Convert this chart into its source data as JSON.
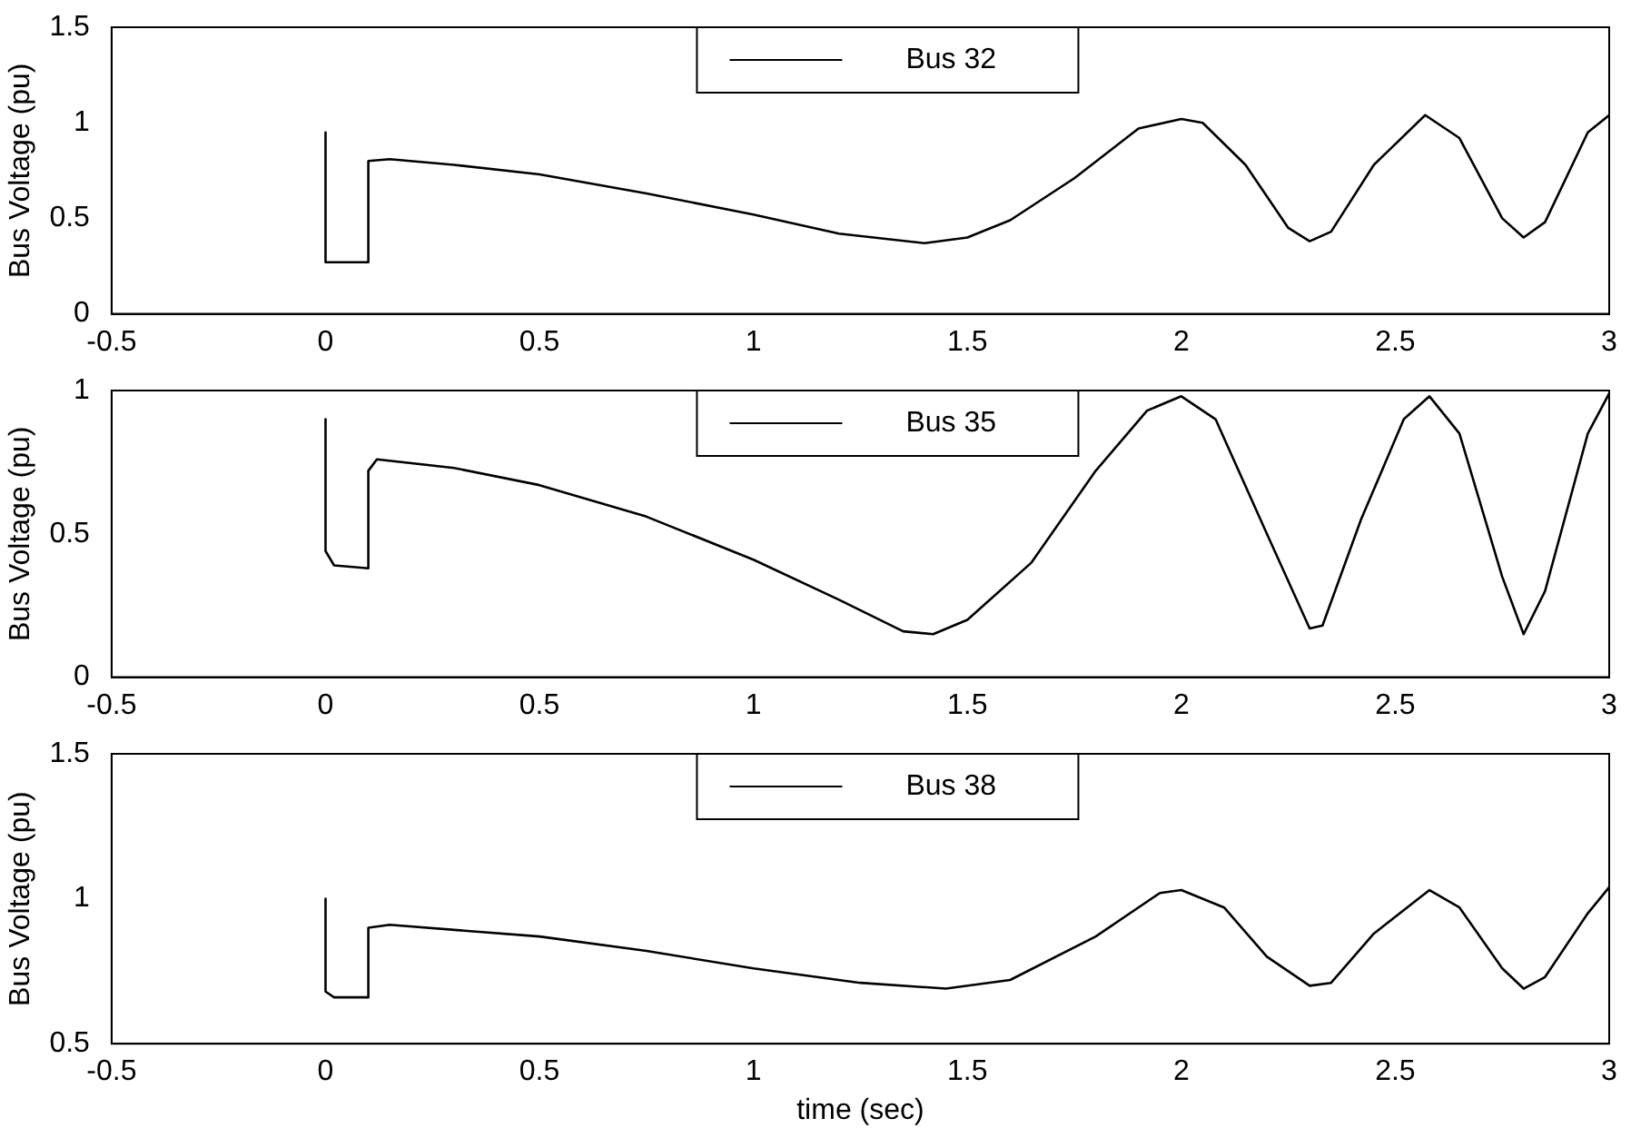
{
  "chart_data": [
    {
      "type": "line",
      "ylabel": "Bus Voltage (pu)",
      "xlim": [
        -0.5,
        3
      ],
      "xticks": [
        -0.5,
        0,
        0.5,
        1,
        1.5,
        2,
        2.5,
        3
      ],
      "ylim": [
        0,
        1.5
      ],
      "yticks": [
        0,
        0.5,
        1,
        1.5
      ],
      "grid": false,
      "legend": "top",
      "marker": "none",
      "series": [
        {
          "name": "Bus 32",
          "color": "#000000",
          "x": [
            0,
            0,
            0.1,
            0.1,
            0.15,
            0.3,
            0.5,
            0.75,
            1,
            1.2,
            1.4,
            1.5,
            1.6,
            1.75,
            1.9,
            2.0,
            2.05,
            2.15,
            2.25,
            2.3,
            2.35,
            2.45,
            2.57,
            2.65,
            2.75,
            2.8,
            2.85,
            2.95,
            3.0
          ],
          "values": [
            0.95,
            0.27,
            0.27,
            0.8,
            0.81,
            0.78,
            0.73,
            0.63,
            0.52,
            0.42,
            0.37,
            0.4,
            0.49,
            0.71,
            0.97,
            1.02,
            1.0,
            0.78,
            0.45,
            0.38,
            0.43,
            0.78,
            1.04,
            0.92,
            0.5,
            0.4,
            0.48,
            0.95,
            1.04
          ]
        }
      ]
    },
    {
      "type": "line",
      "ylabel": "Bus Voltage (pu)",
      "xlim": [
        -0.5,
        3
      ],
      "xticks": [
        -0.5,
        0,
        0.5,
        1,
        1.5,
        2,
        2.5,
        3
      ],
      "ylim": [
        0,
        1
      ],
      "yticks": [
        0,
        0.5,
        1
      ],
      "grid": false,
      "legend": "top",
      "marker": "none",
      "series": [
        {
          "name": "Bus 35",
          "color": "#000000",
          "x": [
            0,
            0,
            0.02,
            0.1,
            0.1,
            0.12,
            0.3,
            0.5,
            0.75,
            1,
            1.2,
            1.35,
            1.42,
            1.5,
            1.65,
            1.8,
            1.92,
            2.0,
            2.08,
            2.2,
            2.3,
            2.33,
            2.42,
            2.52,
            2.58,
            2.65,
            2.75,
            2.8,
            2.85,
            2.95,
            3.0
          ],
          "values": [
            0.9,
            0.44,
            0.39,
            0.38,
            0.72,
            0.76,
            0.73,
            0.67,
            0.56,
            0.41,
            0.27,
            0.16,
            0.15,
            0.2,
            0.4,
            0.72,
            0.93,
            0.98,
            0.9,
            0.5,
            0.17,
            0.18,
            0.55,
            0.9,
            0.98,
            0.85,
            0.35,
            0.15,
            0.3,
            0.85,
            0.99
          ]
        }
      ]
    },
    {
      "type": "line",
      "xlabel": "time (sec)",
      "ylabel": "Bus Voltage (pu)",
      "xlim": [
        -0.5,
        3
      ],
      "xticks": [
        -0.5,
        0,
        0.5,
        1,
        1.5,
        2,
        2.5,
        3
      ],
      "ylim": [
        0.5,
        1.5
      ],
      "yticks": [
        0.5,
        1,
        1.5
      ],
      "grid": false,
      "legend": "top",
      "marker": "none",
      "series": [
        {
          "name": "Bus 38",
          "color": "#000000",
          "x": [
            0,
            0,
            0.02,
            0.1,
            0.1,
            0.15,
            0.5,
            0.75,
            1,
            1.25,
            1.45,
            1.6,
            1.8,
            1.95,
            2.0,
            2.1,
            2.2,
            2.3,
            2.35,
            2.45,
            2.58,
            2.65,
            2.75,
            2.8,
            2.85,
            2.95,
            3.0
          ],
          "values": [
            1.0,
            0.68,
            0.66,
            0.66,
            0.9,
            0.91,
            0.87,
            0.82,
            0.76,
            0.71,
            0.69,
            0.72,
            0.87,
            1.02,
            1.03,
            0.97,
            0.8,
            0.7,
            0.71,
            0.88,
            1.03,
            0.97,
            0.76,
            0.69,
            0.73,
            0.95,
            1.04
          ]
        }
      ]
    }
  ]
}
